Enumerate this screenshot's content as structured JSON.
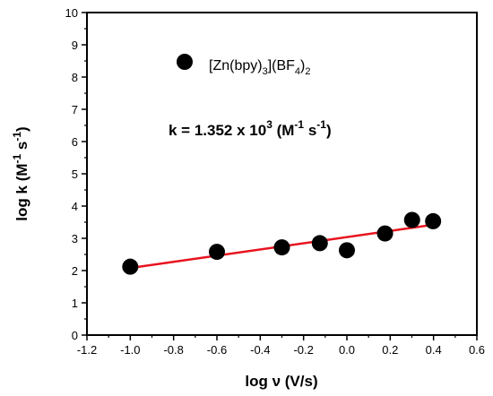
{
  "chart_data": {
    "type": "scatter",
    "xlim": [
      -1.2,
      0.6
    ],
    "ylim": [
      0,
      10
    ],
    "x_ticks": [
      "-1.2",
      "-1.0",
      "-0.8",
      "-0.6",
      "-0.4",
      "-0.2",
      "0.0",
      "0.2",
      "0.4",
      "0.6"
    ],
    "y_ticks": [
      "0",
      "1",
      "2",
      "3",
      "4",
      "5",
      "6",
      "7",
      "8",
      "9",
      "10"
    ],
    "xlabel": "log ν (V/s)",
    "ylabel": {
      "base": "log k (M",
      "sup1": "-1",
      "mid": " s",
      "sup2": "-1",
      "end": ")"
    },
    "legend": {
      "label_main": "[Zn(bpy)",
      "label_sub1": "3",
      "label_mid": "](BF",
      "label_sub2": "4",
      "label_close": ")",
      "label_sub3": "2",
      "placement": "top-left",
      "marker_color": "#000000"
    },
    "annotation": {
      "text_pre": "k = 1.352 x 10",
      "sup1": "3",
      "text_mid": " (M",
      "sup2": "-1",
      "text_mid2": " s",
      "sup3": "-1",
      "text_end": ")"
    },
    "series": [
      {
        "x": [
          -1.0,
          -0.6,
          -0.3,
          -0.125,
          0.0,
          0.176,
          0.301,
          0.398
        ],
        "y": [
          2.12,
          2.58,
          2.72,
          2.85,
          2.63,
          3.15,
          3.57,
          3.53
        ],
        "marker_color": "#000000"
      }
    ],
    "fit_line": {
      "x": [
        -1.0,
        0.398
      ],
      "y": [
        2.08,
        3.42
      ],
      "color": "#e8131f"
    },
    "grid": false
  }
}
